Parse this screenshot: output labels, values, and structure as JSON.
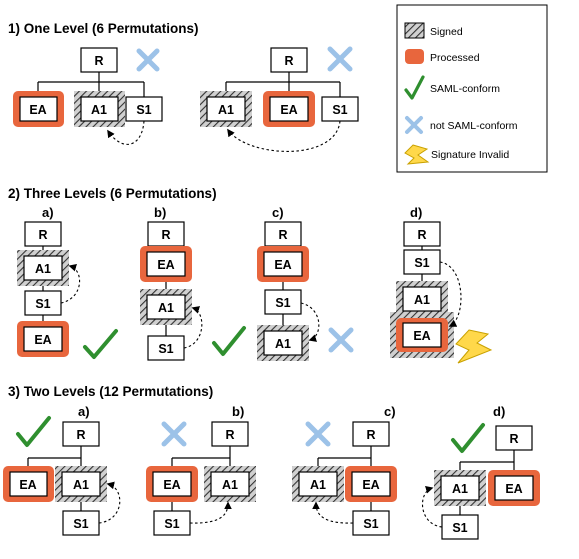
{
  "colors": {
    "processed": "#e8663d",
    "check": "#2f8f2f",
    "cross": "#9cc2e8",
    "bolt": "#ffd84a"
  },
  "icons": [
    "check-icon",
    "cross-icon",
    "lightning-icon",
    "hatched-swatch"
  ],
  "legend": {
    "signed": "Signed",
    "processed": "Processed",
    "saml_conform": "SAML-conform",
    "not_saml_conform": "not SAML-conform",
    "signature_invalid": "Signature Invalid"
  },
  "sections": {
    "one_level": "1) One Level (6 Permutations)",
    "three_levels": "2) Three Levels (6 Permutations)",
    "two_levels": "3) Two Levels (12 Permutations)"
  },
  "variants": [
    "a)",
    "b)",
    "c)",
    "d)"
  ],
  "nodes": {
    "root": "R",
    "ea": "EA",
    "a1": "A1",
    "s1": "S1"
  }
}
